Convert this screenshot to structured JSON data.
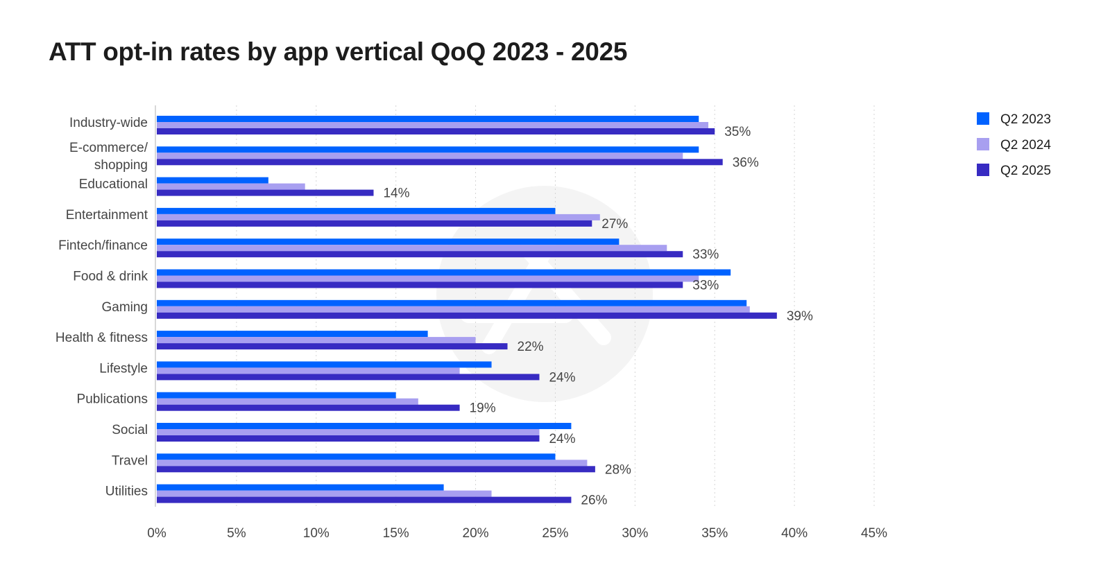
{
  "chart_data": {
    "type": "bar",
    "orientation": "horizontal",
    "title": "ATT opt-in rates by app vertical QoQ 2023 - 2025",
    "xlabel": "",
    "ylabel": "",
    "xlim": [
      0,
      45
    ],
    "x_ticks": [
      0,
      5,
      10,
      15,
      20,
      25,
      30,
      35,
      40,
      45
    ],
    "x_tick_labels": [
      "0%",
      "5%",
      "10%",
      "15%",
      "20%",
      "25%",
      "30%",
      "35%",
      "40%",
      "45%"
    ],
    "grid": "vertical-dotted",
    "legend_position": "top-right",
    "categories": [
      [
        "Industry-wide"
      ],
      [
        "E-commerce/",
        "shopping"
      ],
      [
        "Educational"
      ],
      [
        "Entertainment"
      ],
      [
        "Fintech/finance"
      ],
      [
        "Food & drink"
      ],
      [
        "Gaming"
      ],
      [
        "Health & fitness"
      ],
      [
        "Lifestyle"
      ],
      [
        "Publications"
      ],
      [
        "Social"
      ],
      [
        "Travel"
      ],
      [
        "Utilities"
      ]
    ],
    "series": [
      {
        "name": "Q2 2023",
        "color": "#0062ff",
        "values": [
          34,
          34,
          7,
          25,
          29,
          36,
          37,
          17,
          21,
          15,
          26,
          25,
          18
        ]
      },
      {
        "name": "Q2 2024",
        "color": "#a89ff0",
        "values": [
          34.6,
          33,
          9.3,
          27.8,
          32,
          34,
          37.2,
          20,
          19,
          16.4,
          24,
          27,
          21
        ]
      },
      {
        "name": "Q2 2025",
        "color": "#372bc2",
        "values": [
          35,
          35.5,
          13.6,
          27.3,
          33,
          33,
          38.9,
          22,
          24,
          19,
          24,
          27.5,
          26
        ]
      }
    ],
    "data_labels": [
      "35%",
      "36%",
      "14%",
      "27%",
      "33%",
      "33%",
      "39%",
      "22%",
      "24%",
      "19%",
      "24%",
      "28%",
      "26%"
    ],
    "data_label_series": "Q2 2025"
  },
  "watermark": {
    "icon": "app-store-logo-icon",
    "color": "#f4f4f4"
  }
}
